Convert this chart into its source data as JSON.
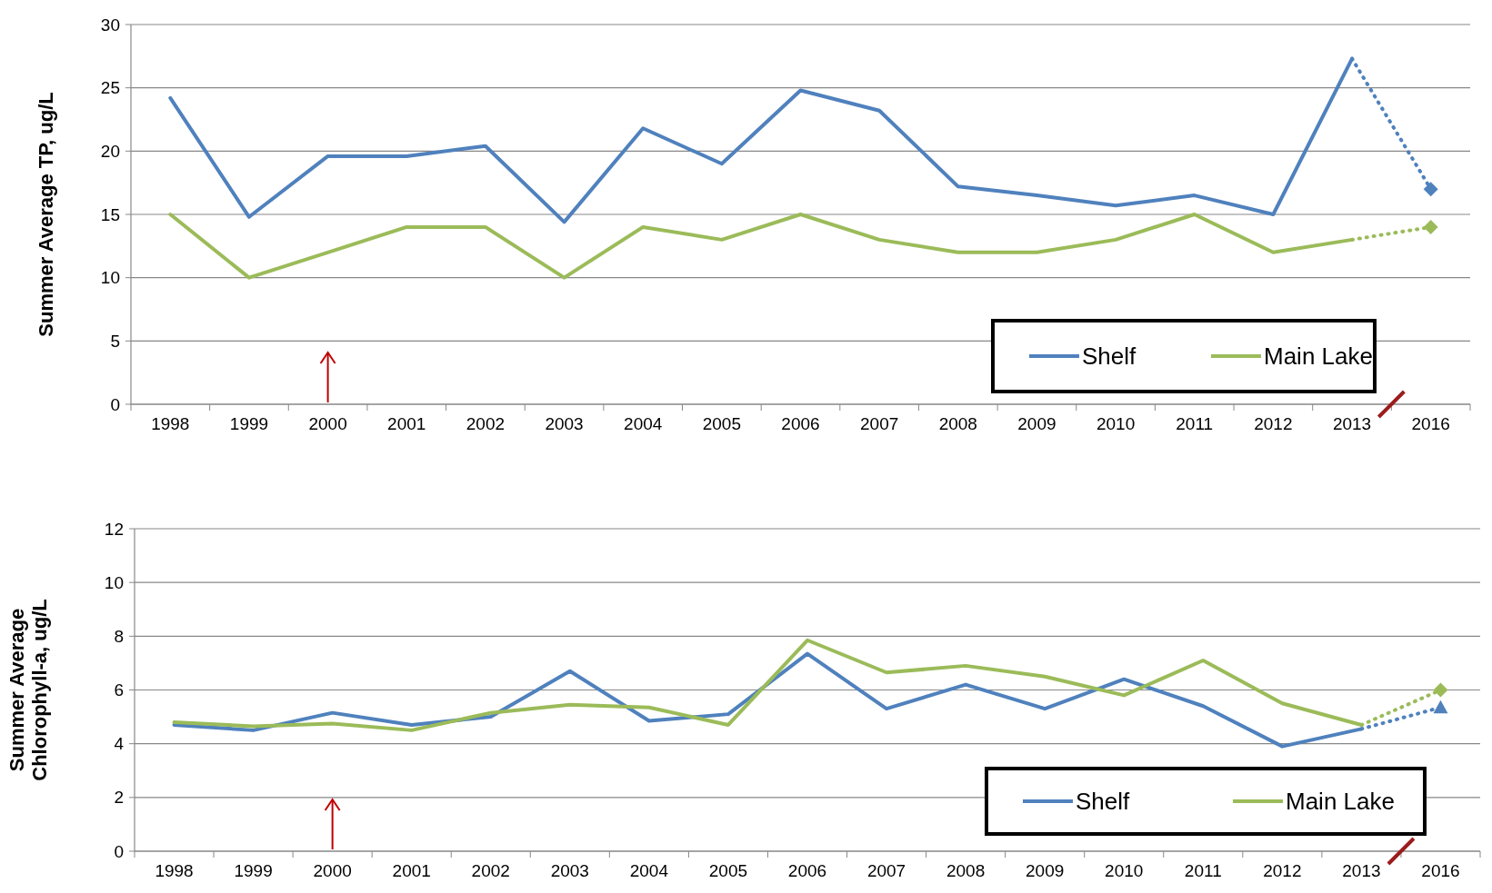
{
  "chart_data": [
    {
      "type": "line",
      "ylabel": "Summer Average TP, ug/L",
      "categories": [
        "1998",
        "1999",
        "2000",
        "2001",
        "2002",
        "2003",
        "2004",
        "2005",
        "2006",
        "2007",
        "2008",
        "2009",
        "2010",
        "2011",
        "2012",
        "2013",
        "2016"
      ],
      "ylim": [
        0,
        30
      ],
      "yticks": [
        0,
        5,
        10,
        15,
        20,
        25,
        30
      ],
      "grid": "y",
      "legend": "bottom right",
      "series": [
        {
          "name": "Shelf",
          "color": "#4f81bd",
          "line_style": "solid",
          "marker": "none",
          "values": [
            24.2,
            14.8,
            19.6,
            19.6,
            20.4,
            14.4,
            21.8,
            19.0,
            24.8,
            23.2,
            17.2,
            16.5,
            15.7,
            16.5,
            15.0,
            27.3,
            null
          ]
        },
        {
          "name": "Main Lake",
          "color": "#9bbb59",
          "line_style": "solid",
          "marker": "none",
          "values": [
            15,
            10,
            12,
            14,
            14,
            10,
            14,
            13,
            15,
            13,
            12,
            12,
            13,
            15,
            12,
            13,
            null
          ]
        },
        {
          "color": "#4f81bd",
          "line_style": "dotted",
          "marker": "diamond",
          "values": [
            null,
            null,
            null,
            null,
            null,
            null,
            null,
            null,
            null,
            null,
            null,
            null,
            null,
            null,
            null,
            27.3,
            17.0
          ]
        },
        {
          "color": "#9bbb59",
          "line_style": "dotted",
          "marker": "diamond",
          "values": [
            null,
            null,
            null,
            null,
            null,
            null,
            null,
            null,
            null,
            null,
            null,
            null,
            null,
            null,
            null,
            13,
            14
          ]
        }
      ]
    },
    {
      "type": "line",
      "ylabel": "Summer Average\nChlorophyll-a, ug/L",
      "categories": [
        "1998",
        "1999",
        "2000",
        "2001",
        "2002",
        "2003",
        "2004",
        "2005",
        "2006",
        "2007",
        "2008",
        "2009",
        "2010",
        "2011",
        "2012",
        "2013",
        "2016"
      ],
      "ylim": [
        0,
        12
      ],
      "yticks": [
        0,
        2,
        4,
        6,
        8,
        10,
        12
      ],
      "grid": "y",
      "legend": "bottom right",
      "series": [
        {
          "name": "Shelf",
          "color": "#4f81bd",
          "line_style": "solid",
          "marker": "none",
          "values": [
            4.7,
            4.5,
            5.15,
            4.7,
            5.0,
            6.7,
            4.85,
            5.1,
            7.35,
            5.3,
            6.2,
            5.3,
            6.4,
            5.4,
            3.9,
            4.55,
            null
          ]
        },
        {
          "name": "Main Lake",
          "color": "#9bbb59",
          "line_style": "solid",
          "marker": "none",
          "values": [
            4.8,
            4.65,
            4.75,
            4.5,
            5.15,
            5.45,
            5.35,
            4.7,
            7.85,
            6.65,
            6.9,
            6.5,
            5.8,
            7.1,
            5.5,
            4.7,
            null
          ]
        },
        {
          "color": "#4f81bd",
          "line_style": "dotted",
          "marker": "triangle",
          "values": [
            null,
            null,
            null,
            null,
            null,
            null,
            null,
            null,
            null,
            null,
            null,
            null,
            null,
            null,
            null,
            4.55,
            5.35
          ]
        },
        {
          "color": "#9bbb59",
          "line_style": "dotted",
          "marker": "diamond",
          "values": [
            null,
            null,
            null,
            null,
            null,
            null,
            null,
            null,
            null,
            null,
            null,
            null,
            null,
            null,
            null,
            4.7,
            6.0
          ]
        }
      ]
    }
  ]
}
